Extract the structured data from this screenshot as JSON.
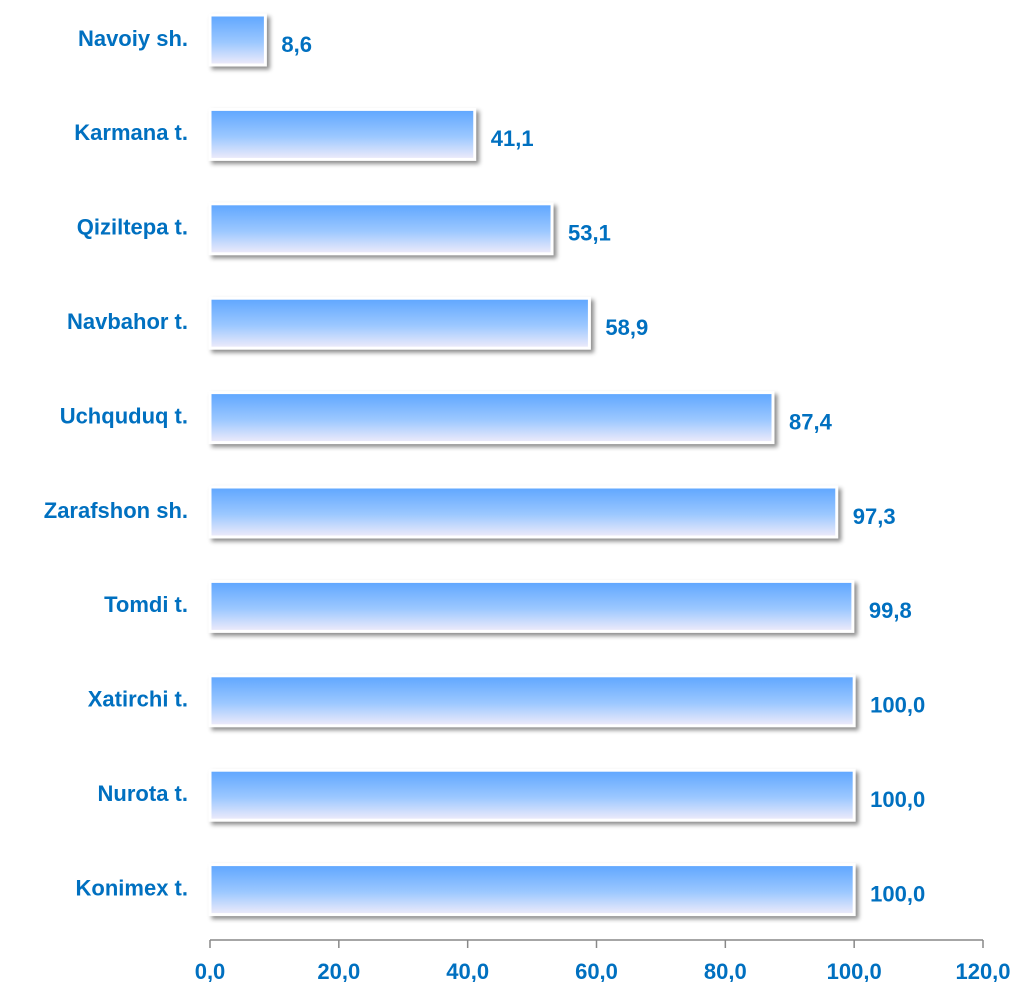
{
  "chart_data": {
    "type": "barh",
    "categories": [
      "Navoiy sh.",
      "Karmana t.",
      "Qiziltepa t.",
      "Navbahor t.",
      "Uchquduq t.",
      "Zarafshon sh.",
      "Tomdi t.",
      "Xatirchi t.",
      "Nurota t.",
      "Konimex t."
    ],
    "values": [
      8.6,
      41.1,
      53.1,
      58.9,
      87.4,
      97.3,
      99.8,
      100.0,
      100.0,
      100.0
    ],
    "value_labels": [
      "8,6",
      "41,1",
      "53,1",
      "58,9",
      "87,4",
      "97,3",
      "99,8",
      "100,0",
      "100,0",
      "100,0"
    ],
    "color": "#66aaff",
    "xlim": [
      0,
      120
    ],
    "xticks": [
      {
        "value": 0,
        "label": "0,0"
      },
      {
        "value": 20,
        "label": "20,0"
      },
      {
        "value": 40,
        "label": "40,0"
      },
      {
        "value": 60,
        "label": "60,0"
      },
      {
        "value": 80,
        "label": "80,0"
      },
      {
        "value": 100,
        "label": "100,0"
      },
      {
        "value": 120,
        "label": "120,0"
      }
    ],
    "grid": false
  }
}
